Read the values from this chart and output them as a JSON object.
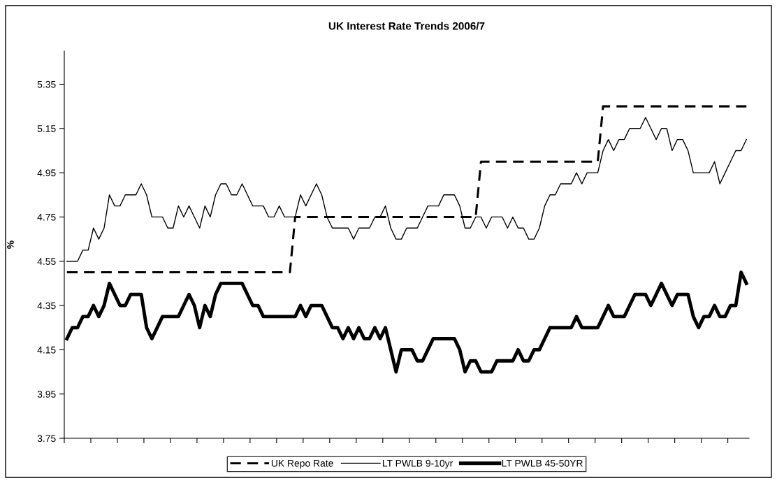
{
  "chart_data": {
    "type": "line",
    "title": "UK Interest Rate Trends 2006/7",
    "ylabel": "%",
    "categories": [
      null,
      null,
      null,
      null,
      null,
      null,
      null,
      null,
      null,
      null,
      null,
      null,
      null,
      null,
      null,
      null,
      null,
      null,
      null,
      null,
      null,
      null,
      null,
      null,
      null,
      null,
      null,
      null,
      null,
      null,
      null,
      null,
      null,
      null,
      null,
      null,
      null,
      null,
      null,
      null,
      null,
      null,
      null,
      null,
      null,
      null,
      null,
      null,
      null,
      null,
      null,
      null,
      null,
      null,
      null,
      null,
      null,
      null,
      null,
      null,
      null,
      null,
      null,
      null,
      null,
      null,
      null,
      null,
      null,
      null,
      null,
      null,
      null,
      null,
      null,
      null,
      null,
      null,
      null,
      null,
      null,
      null,
      null,
      null,
      null,
      null,
      null,
      null,
      null,
      null,
      null,
      null,
      null,
      null,
      null,
      null,
      null,
      null,
      null,
      null,
      null,
      null,
      null,
      null,
      null,
      null,
      null,
      null,
      null,
      null,
      null,
      null,
      null,
      null,
      null,
      null,
      null,
      null,
      null,
      null,
      null,
      null,
      null,
      null,
      null,
      null,
      null,
      null,
      null
    ],
    "series": [
      {
        "name": "UK Repo Rate",
        "color": "#000000",
        "line_style": "dashed",
        "values": [
          4.5,
          4.5,
          4.5,
          4.5,
          4.5,
          4.5,
          4.5,
          4.5,
          4.5,
          4.5,
          4.5,
          4.5,
          4.5,
          4.5,
          4.5,
          4.5,
          4.5,
          4.5,
          4.5,
          4.5,
          4.5,
          4.5,
          4.5,
          4.5,
          4.5,
          4.5,
          4.5,
          4.5,
          4.5,
          4.5,
          4.5,
          4.5,
          4.5,
          4.5,
          4.5,
          4.5,
          4.5,
          4.5,
          4.5,
          4.5,
          4.5,
          4.5,
          4.5,
          4.75,
          4.75,
          4.75,
          4.75,
          4.75,
          4.75,
          4.75,
          4.75,
          4.75,
          4.75,
          4.75,
          4.75,
          4.75,
          4.75,
          4.75,
          4.75,
          4.75,
          4.75,
          4.75,
          4.75,
          4.75,
          4.75,
          4.75,
          4.75,
          4.75,
          4.75,
          4.75,
          4.75,
          4.75,
          4.75,
          4.75,
          4.75,
          4.75,
          4.75,
          4.75,
          5.0,
          5.0,
          5.0,
          5.0,
          5.0,
          5.0,
          5.0,
          5.0,
          5.0,
          5.0,
          5.0,
          5.0,
          5.0,
          5.0,
          5.0,
          5.0,
          5.0,
          5.0,
          5.0,
          5.0,
          5.0,
          5.0,
          5.0,
          5.25,
          5.25,
          5.25,
          5.25,
          5.25,
          5.25,
          5.25,
          5.25,
          5.25,
          5.25,
          5.25,
          5.25,
          5.25,
          5.25,
          5.25,
          5.25,
          5.25,
          5.25,
          5.25,
          5.25,
          5.25,
          5.25,
          5.25,
          5.25,
          5.25,
          5.25,
          5.25,
          5.25
        ]
      },
      {
        "name": "LT PWLB 9-10yr",
        "color": "#000000",
        "line_style": "solid",
        "values": [
          4.55,
          4.55,
          4.55,
          4.6,
          4.6,
          4.7,
          4.65,
          4.7,
          4.85,
          4.8,
          4.8,
          4.85,
          4.85,
          4.85,
          4.9,
          4.85,
          4.75,
          4.75,
          4.75,
          4.7,
          4.7,
          4.8,
          4.75,
          4.8,
          4.75,
          4.7,
          4.8,
          4.75,
          4.85,
          4.9,
          4.9,
          4.85,
          4.85,
          4.9,
          4.85,
          4.8,
          4.8,
          4.8,
          4.75,
          4.75,
          4.8,
          4.75,
          4.75,
          4.75,
          4.85,
          4.8,
          4.85,
          4.9,
          4.85,
          4.75,
          4.7,
          4.7,
          4.7,
          4.7,
          4.65,
          4.7,
          4.7,
          4.7,
          4.75,
          4.75,
          4.8,
          4.7,
          4.65,
          4.65,
          4.7,
          4.7,
          4.7,
          4.75,
          4.8,
          4.8,
          4.8,
          4.85,
          4.85,
          4.85,
          4.8,
          4.7,
          4.7,
          4.75,
          4.75,
          4.7,
          4.75,
          4.75,
          4.75,
          4.7,
          4.75,
          4.7,
          4.7,
          4.65,
          4.65,
          4.7,
          4.8,
          4.85,
          4.85,
          4.9,
          4.9,
          4.9,
          4.95,
          4.9,
          4.95,
          4.95,
          4.95,
          5.05,
          5.1,
          5.05,
          5.1,
          5.1,
          5.15,
          5.15,
          5.15,
          5.2,
          5.15,
          5.1,
          5.15,
          5.15,
          5.05,
          5.1,
          5.1,
          5.05,
          4.95,
          4.95,
          4.95,
          4.95,
          5.0,
          4.9,
          4.95,
          5.0,
          5.05,
          5.05,
          5.1
        ]
      },
      {
        "name": "LT PWLB 45-50YR",
        "color": "#000000",
        "line_style": "solid",
        "values": [
          4.2,
          4.25,
          4.25,
          4.3,
          4.3,
          4.35,
          4.3,
          4.35,
          4.45,
          4.4,
          4.35,
          4.35,
          4.4,
          4.4,
          4.4,
          4.25,
          4.2,
          4.25,
          4.3,
          4.3,
          4.3,
          4.3,
          4.35,
          4.4,
          4.35,
          4.25,
          4.35,
          4.3,
          4.4,
          4.45,
          4.45,
          4.45,
          4.45,
          4.45,
          4.4,
          4.35,
          4.35,
          4.3,
          4.3,
          4.3,
          4.3,
          4.3,
          4.3,
          4.3,
          4.35,
          4.3,
          4.35,
          4.35,
          4.35,
          4.3,
          4.25,
          4.25,
          4.2,
          4.25,
          4.2,
          4.25,
          4.2,
          4.2,
          4.25,
          4.2,
          4.25,
          4.15,
          4.05,
          4.15,
          4.15,
          4.15,
          4.1,
          4.1,
          4.15,
          4.2,
          4.2,
          4.2,
          4.2,
          4.2,
          4.15,
          4.05,
          4.1,
          4.1,
          4.05,
          4.05,
          4.05,
          4.1,
          4.1,
          4.1,
          4.1,
          4.15,
          4.1,
          4.1,
          4.15,
          4.15,
          4.2,
          4.25,
          4.25,
          4.25,
          4.25,
          4.25,
          4.3,
          4.25,
          4.25,
          4.25,
          4.25,
          4.3,
          4.35,
          4.3,
          4.3,
          4.3,
          4.35,
          4.4,
          4.4,
          4.4,
          4.35,
          4.4,
          4.45,
          4.4,
          4.35,
          4.4,
          4.4,
          4.4,
          4.3,
          4.25,
          4.3,
          4.3,
          4.35,
          4.3,
          4.3,
          4.35,
          4.35,
          4.5,
          4.45
        ]
      }
    ],
    "ylim": [
      3.75,
      5.5
    ],
    "yticks": [
      3.75,
      3.95,
      4.15,
      4.35,
      4.55,
      4.75,
      4.95,
      5.15,
      5.35
    ],
    "grid": false,
    "legend": "bottom",
    "marker": "none",
    "tick_labels": "y"
  }
}
